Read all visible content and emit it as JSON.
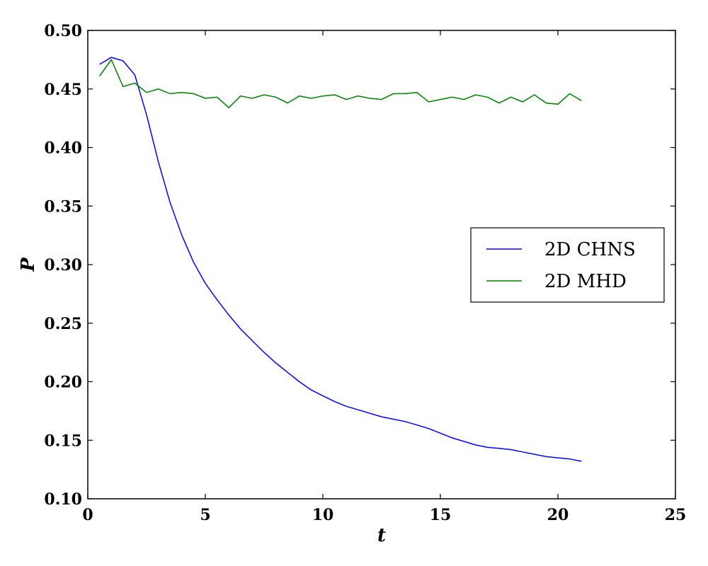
{
  "chart_data": {
    "type": "line",
    "xlabel": "t",
    "ylabel": "P",
    "xlim": [
      0,
      25
    ],
    "ylim": [
      0.1,
      0.5
    ],
    "x_ticks": [
      "0",
      "5",
      "10",
      "15",
      "20",
      "25"
    ],
    "y_ticks": [
      "0.10",
      "0.15",
      "0.20",
      "0.25",
      "0.30",
      "0.35",
      "0.40",
      "0.45",
      "0.50"
    ],
    "grid": false,
    "legend_position": "center-right",
    "x": [
      0.5,
      1.0,
      1.5,
      2.0,
      2.5,
      3.0,
      3.5,
      4.0,
      4.5,
      5.0,
      5.5,
      6.0,
      6.5,
      7.0,
      7.5,
      8.0,
      8.5,
      9.0,
      9.5,
      10.0,
      10.5,
      11.0,
      11.5,
      12.0,
      12.5,
      13.0,
      13.5,
      14.0,
      14.5,
      15.0,
      15.5,
      16.0,
      16.5,
      17.0,
      17.5,
      18.0,
      18.5,
      19.0,
      19.5,
      20.0,
      20.5,
      21.0
    ],
    "series": [
      {
        "name": "2D CHNS",
        "color": "#0000ff",
        "values": [
          0.471,
          0.477,
          0.474,
          0.462,
          0.428,
          0.388,
          0.353,
          0.325,
          0.302,
          0.284,
          0.27,
          0.257,
          0.245,
          0.235,
          0.225,
          0.216,
          0.208,
          0.2,
          0.193,
          0.188,
          0.183,
          0.179,
          0.176,
          0.173,
          0.17,
          0.168,
          0.166,
          0.163,
          0.16,
          0.156,
          0.152,
          0.149,
          0.146,
          0.144,
          0.143,
          0.142,
          0.14,
          0.138,
          0.136,
          0.135,
          0.134,
          0.132
        ]
      },
      {
        "name": "2D MHD",
        "color": "#007f00",
        "values": [
          0.461,
          0.475,
          0.452,
          0.455,
          0.447,
          0.45,
          0.446,
          0.447,
          0.446,
          0.442,
          0.443,
          0.434,
          0.444,
          0.442,
          0.445,
          0.443,
          0.438,
          0.444,
          0.442,
          0.444,
          0.445,
          0.441,
          0.444,
          0.442,
          0.441,
          0.446,
          0.446,
          0.447,
          0.439,
          0.441,
          0.443,
          0.441,
          0.445,
          0.443,
          0.438,
          0.443,
          0.439,
          0.445,
          0.438,
          0.437,
          0.446,
          0.44
        ]
      }
    ]
  }
}
